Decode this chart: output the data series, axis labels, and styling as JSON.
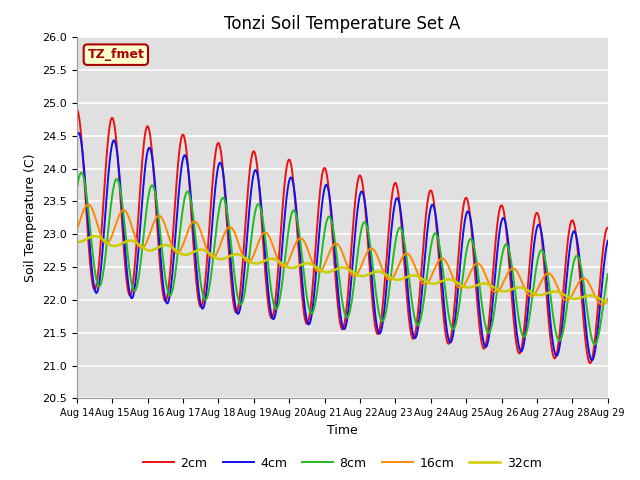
{
  "title": "Tonzi Soil Temperature Set A",
  "xlabel": "Time",
  "ylabel": "Soil Temperature (C)",
  "ylim": [
    20.5,
    26.0
  ],
  "yticks": [
    20.5,
    21.0,
    21.5,
    22.0,
    22.5,
    23.0,
    23.5,
    24.0,
    24.5,
    25.0,
    25.5,
    26.0
  ],
  "xtick_labels": [
    "Aug 14",
    "Aug 15",
    "Aug 16",
    "Aug 17",
    "Aug 18",
    "Aug 19",
    "Aug 20",
    "Aug 21",
    "Aug 22",
    "Aug 23",
    "Aug 24",
    "Aug 25",
    "Aug 26",
    "Aug 27",
    "Aug 28",
    "Aug 29"
  ],
  "colors": {
    "2cm": "#EE1111",
    "4cm": "#1111EE",
    "8cm": "#22BB22",
    "16cm": "#FF8800",
    "32cm": "#CCCC00"
  },
  "label_box": "TZ_fmet",
  "label_box_facecolor": "#FFFFCC",
  "label_box_edgecolor": "#AA0000",
  "plot_bg": "#E0E0E0"
}
